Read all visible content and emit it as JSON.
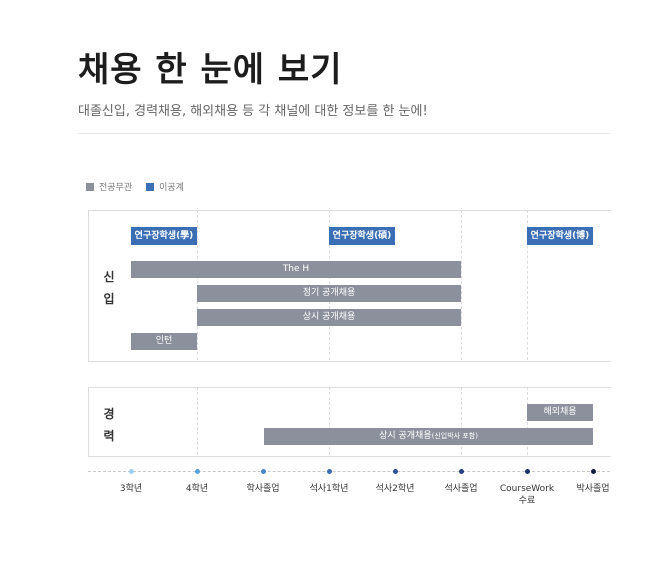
{
  "title": "채용 한 눈에 보기",
  "subtitle": "대졸신입, 경력채용, 해외채용 등 각 채널에 대한 정보를 한 눈에!",
  "legend": [
    {
      "label": "전공무관",
      "color": "#8c909c"
    },
    {
      "label": "이공계",
      "color": "#3a6fb6"
    }
  ],
  "sections": {
    "new": {
      "label1": "신",
      "label2": "입"
    },
    "experienced": {
      "label1": "경",
      "label2": "력"
    }
  },
  "chips": [
    "연구장학생(學)",
    "연구장학생(碩)",
    "연구장학생(博)"
  ],
  "bars": {
    "the_h": "The H",
    "regular": "정기 공개채용",
    "ongoing": "상시 공개채용",
    "intern": "인턴",
    "overseas": "해외채용",
    "exp_ongoing": "상시 공개채용",
    "exp_ongoing_note": "(신입박사 포함)"
  },
  "axis": [
    {
      "label": "3학년",
      "label2": "",
      "color": "#9fd0ee"
    },
    {
      "label": "4학년",
      "label2": "",
      "color": "#5aa0d8"
    },
    {
      "label": "학사졸업",
      "label2": "",
      "color": "#4a86c4"
    },
    {
      "label": "석사1학년",
      "label2": "",
      "color": "#3a6ab0"
    },
    {
      "label": "석사2학년",
      "label2": "",
      "color": "#2d5496"
    },
    {
      "label": "석사졸업",
      "label2": "",
      "color": "#23407c"
    },
    {
      "label": "CourseWork",
      "label2": "수료",
      "color": "#1b3064"
    },
    {
      "label": "박사졸업",
      "label2": "",
      "color": "#141e40"
    }
  ]
}
